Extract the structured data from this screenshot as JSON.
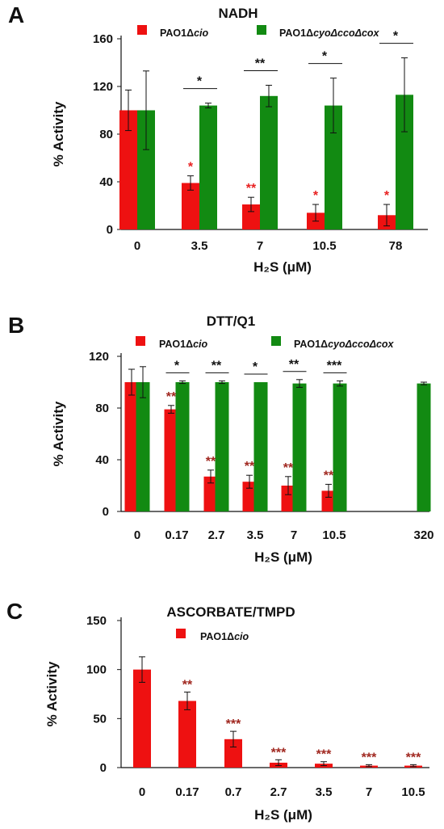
{
  "colors": {
    "red": "#ee1111",
    "green": "#128a12",
    "axis": "#111111"
  },
  "chart_data": [
    {
      "panel": "A",
      "type": "bar",
      "title": "NADH",
      "xlabel": "H₂S (μM)",
      "ylabel": "% Activity",
      "ylim": [
        0,
        160
      ],
      "yticks": [
        0,
        40,
        80,
        120,
        160
      ],
      "categories": [
        "0",
        "3.5",
        "7",
        "10.5",
        "78"
      ],
      "legend": [
        {
          "name": "PAO1Δ",
          "name_italic": "cio"
        },
        {
          "name": "PAO1Δ",
          "name_italic": "cyoΔccoΔcox"
        }
      ],
      "series": [
        {
          "name": "PAO1Δcio",
          "values": [
            100,
            39,
            21,
            14,
            12
          ],
          "errors": [
            17,
            6,
            6,
            7,
            9
          ]
        },
        {
          "name": "PAO1ΔcyoΔccoΔcox",
          "values": [
            100,
            104,
            112,
            104,
            113
          ],
          "errors": [
            33,
            2,
            9,
            23,
            31
          ]
        }
      ],
      "bar_labels": [
        "",
        "*",
        "**",
        "*",
        "*"
      ],
      "comparisons": [
        "",
        "*",
        "**",
        "*",
        "*"
      ]
    },
    {
      "panel": "B",
      "type": "bar",
      "title": "DTT/Q1",
      "xlabel": "H₂S (μM)",
      "ylabel": "% Activity",
      "ylim": [
        0,
        120
      ],
      "yticks": [
        0,
        40,
        80,
        120
      ],
      "categories": [
        "0",
        "0.17",
        "2.7",
        "3.5",
        "7",
        "10.5",
        "320"
      ],
      "legend": [
        {
          "name": "PAO1Δ",
          "name_italic": "cio"
        },
        {
          "name": "PAO1Δ",
          "name_italic": "cyoΔccoΔcox"
        }
      ],
      "series": [
        {
          "name": "PAO1Δcio",
          "values": [
            100,
            79,
            27,
            23,
            20,
            16,
            null
          ],
          "errors": [
            10,
            3,
            5,
            5,
            7,
            5,
            null
          ]
        },
        {
          "name": "PAO1ΔcyoΔccoΔcox",
          "values": [
            100,
            100,
            100,
            100,
            99,
            99,
            99
          ],
          "errors": [
            12,
            1,
            1,
            0,
            3,
            2,
            1
          ]
        }
      ],
      "bar_labels": [
        "",
        "**",
        "**",
        "**",
        "**",
        "**",
        ""
      ],
      "comparisons": [
        "",
        "*",
        "**",
        "*",
        "**",
        "***",
        ""
      ]
    },
    {
      "panel": "C",
      "type": "bar",
      "title": "ASCORBATE/TMPD",
      "xlabel": "H₂S (μM)",
      "ylabel": "% Activity",
      "ylim": [
        0,
        150
      ],
      "yticks": [
        0,
        50,
        100,
        150
      ],
      "categories": [
        "0",
        "0.17",
        "0.7",
        "2.7",
        "3.5",
        "7",
        "10.5"
      ],
      "legend": [
        {
          "name": "PAO1Δ",
          "name_italic": "cio"
        }
      ],
      "series": [
        {
          "name": "PAO1Δcio",
          "values": [
            100,
            68,
            29,
            5,
            4,
            2,
            2
          ],
          "errors": [
            13,
            9,
            8,
            3,
            2,
            1,
            1
          ]
        }
      ],
      "bar_labels": [
        "",
        "**",
        "***",
        "***",
        "***",
        "***",
        "***"
      ]
    }
  ]
}
